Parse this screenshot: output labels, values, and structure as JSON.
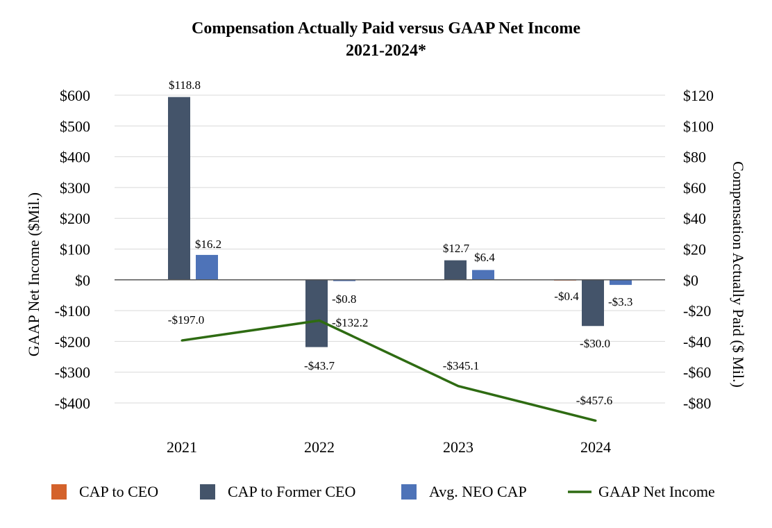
{
  "chart_data": {
    "type": "bar",
    "title": "Compensation Actually Paid versus GAAP Net Income",
    "subtitle": "2021-2024*",
    "categories": [
      "2021",
      "2022",
      "2023",
      "2024"
    ],
    "left_axis": {
      "label": "GAAP Net Income ($Mil.)",
      "ylim": [
        -400,
        600
      ],
      "ticks": [
        600,
        500,
        400,
        300,
        200,
        100,
        0,
        -100,
        -200,
        -300,
        -400
      ],
      "tick_labels": [
        "$600",
        "$500",
        "$400",
        "$300",
        "$200",
        "$100",
        "$0",
        "-$100",
        "-$200",
        "-$300",
        "-$400"
      ]
    },
    "right_axis": {
      "label": "Compensation Actually Paid ($ Mil.)",
      "ylim": [
        -80,
        120
      ],
      "ticks": [
        120,
        100,
        80,
        60,
        40,
        20,
        0,
        -20,
        -40,
        -60,
        -80
      ],
      "tick_labels": [
        "$120",
        "$100",
        "$80",
        "$60",
        "$40",
        "$20",
        "$0",
        "-$20",
        "-$40",
        "-$60",
        "-$80"
      ]
    },
    "series": [
      {
        "name": "CAP to CEO",
        "kind": "bar",
        "axis": "right",
        "color": "#D4622B",
        "values": [
          null,
          null,
          null,
          -0.4
        ],
        "labels": [
          "",
          "",
          "",
          "-$0.4"
        ]
      },
      {
        "name": "CAP to Former CEO",
        "kind": "bar",
        "axis": "right",
        "color": "#44546A",
        "values": [
          118.8,
          -43.7,
          12.7,
          -30.0
        ],
        "labels": [
          "$118.8",
          "-$43.7",
          "$12.7",
          "-$30.0"
        ]
      },
      {
        "name": "Avg. NEO CAP",
        "kind": "bar",
        "axis": "right",
        "color": "#4E73B8",
        "values": [
          16.2,
          -0.8,
          6.4,
          -3.3
        ],
        "labels": [
          "$16.2",
          "-$0.8",
          "$6.4",
          "-$3.3"
        ]
      },
      {
        "name": "GAAP Net Income",
        "kind": "line",
        "axis": "left",
        "color": "#2E6B12",
        "values": [
          -197.0,
          -132.2,
          -345.1,
          -457.6
        ],
        "labels": [
          "-$197.0",
          "-$132.2",
          "-$345.1",
          "-$457.6"
        ]
      }
    ],
    "grid": true,
    "legend": "bottom"
  }
}
